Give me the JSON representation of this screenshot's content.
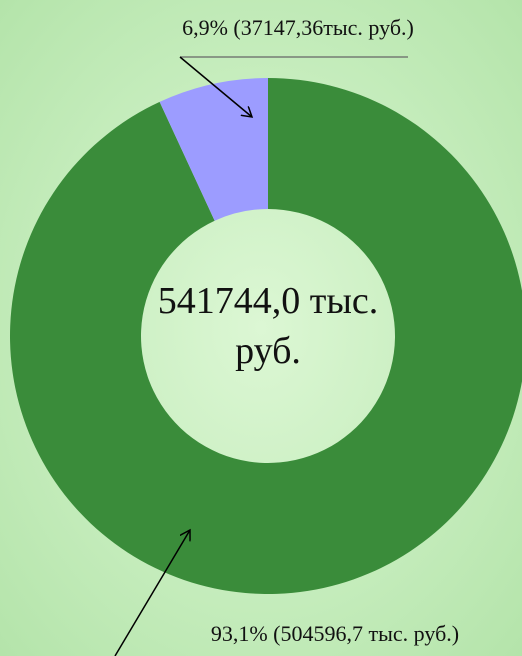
{
  "chart_data": {
    "type": "pie",
    "donut": true,
    "values": [
      93.1,
      6.9
    ],
    "value_labels": [
      "93,1% (504596,7 тыс. руб.)",
      "6,9% (37147,36тыс. руб.)"
    ],
    "colors": [
      "#3a8c3a",
      "#9c9cff"
    ],
    "center_label": "541744,0 тыс. руб."
  }
}
